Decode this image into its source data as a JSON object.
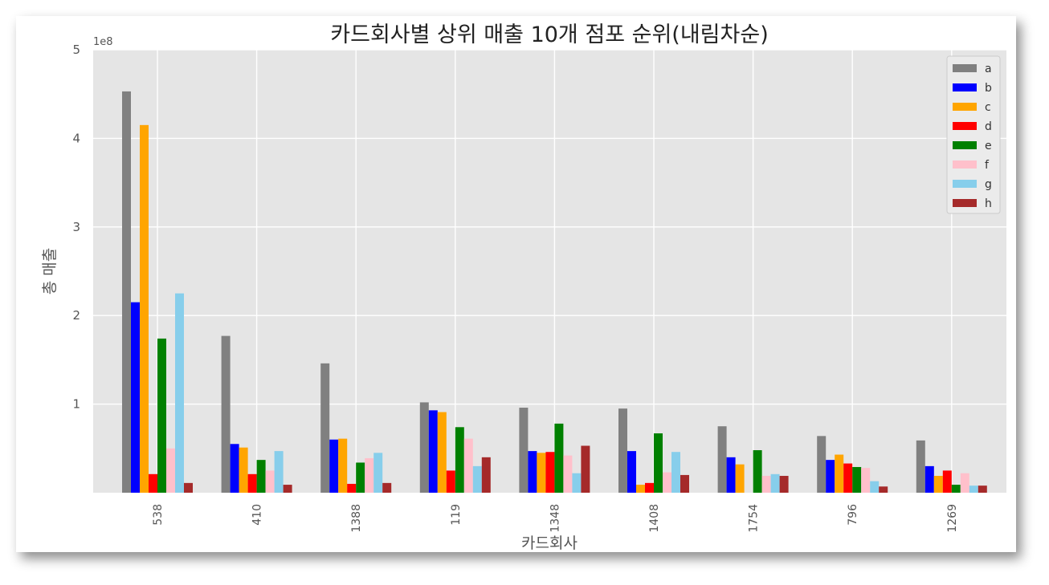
{
  "chart_data": {
    "type": "bar",
    "title": "카드회사별 상위 매출 10개 점포 순위(내림차순)",
    "xlabel": "카드회사",
    "ylabel": "총 매출",
    "y_offset_label": "1e8",
    "ylim": [
      0,
      500000000
    ],
    "yticks": [
      {
        "value": 100000000,
        "label": "1"
      },
      {
        "value": 200000000,
        "label": "2"
      },
      {
        "value": 300000000,
        "label": "3"
      },
      {
        "value": 400000000,
        "label": "4"
      },
      {
        "value": 500000000,
        "label": "5"
      }
    ],
    "grid": true,
    "legend_position": "top-right",
    "categories": [
      "538",
      "410",
      "1388",
      "119",
      "1348",
      "1408",
      "1754",
      "796",
      "1269"
    ],
    "series": [
      {
        "name": "a",
        "color": "#808080",
        "values": [
          453000000,
          177000000,
          146000000,
          102000000,
          96000000,
          95000000,
          75000000,
          64000000,
          59000000
        ]
      },
      {
        "name": "b",
        "color": "#0000ff",
        "values": [
          215000000,
          55000000,
          60000000,
          93000000,
          47000000,
          47000000,
          40000000,
          37000000,
          30000000
        ]
      },
      {
        "name": "c",
        "color": "#ffa500",
        "values": [
          415000000,
          51000000,
          61000000,
          91000000,
          45000000,
          9000000,
          32000000,
          43000000,
          19000000
        ]
      },
      {
        "name": "d",
        "color": "#ff0000",
        "values": [
          21000000,
          21000000,
          10000000,
          25000000,
          46000000,
          11000000,
          0,
          33000000,
          25000000
        ]
      },
      {
        "name": "e",
        "color": "#008000",
        "values": [
          174000000,
          37000000,
          34000000,
          74000000,
          78000000,
          67000000,
          48000000,
          29000000,
          9000000
        ]
      },
      {
        "name": "f",
        "color": "#ffc0cb",
        "values": [
          50000000,
          25000000,
          39000000,
          61000000,
          42000000,
          23000000,
          19000000,
          28000000,
          22000000
        ]
      },
      {
        "name": "g",
        "color": "#87ceeb",
        "values": [
          225000000,
          47000000,
          45000000,
          30000000,
          22000000,
          46000000,
          21000000,
          13000000,
          8000000
        ]
      },
      {
        "name": "h",
        "color": "#a52a2a",
        "values": [
          11000000,
          9000000,
          11000000,
          40000000,
          53000000,
          20000000,
          19000000,
          7000000,
          8000000
        ]
      }
    ]
  }
}
